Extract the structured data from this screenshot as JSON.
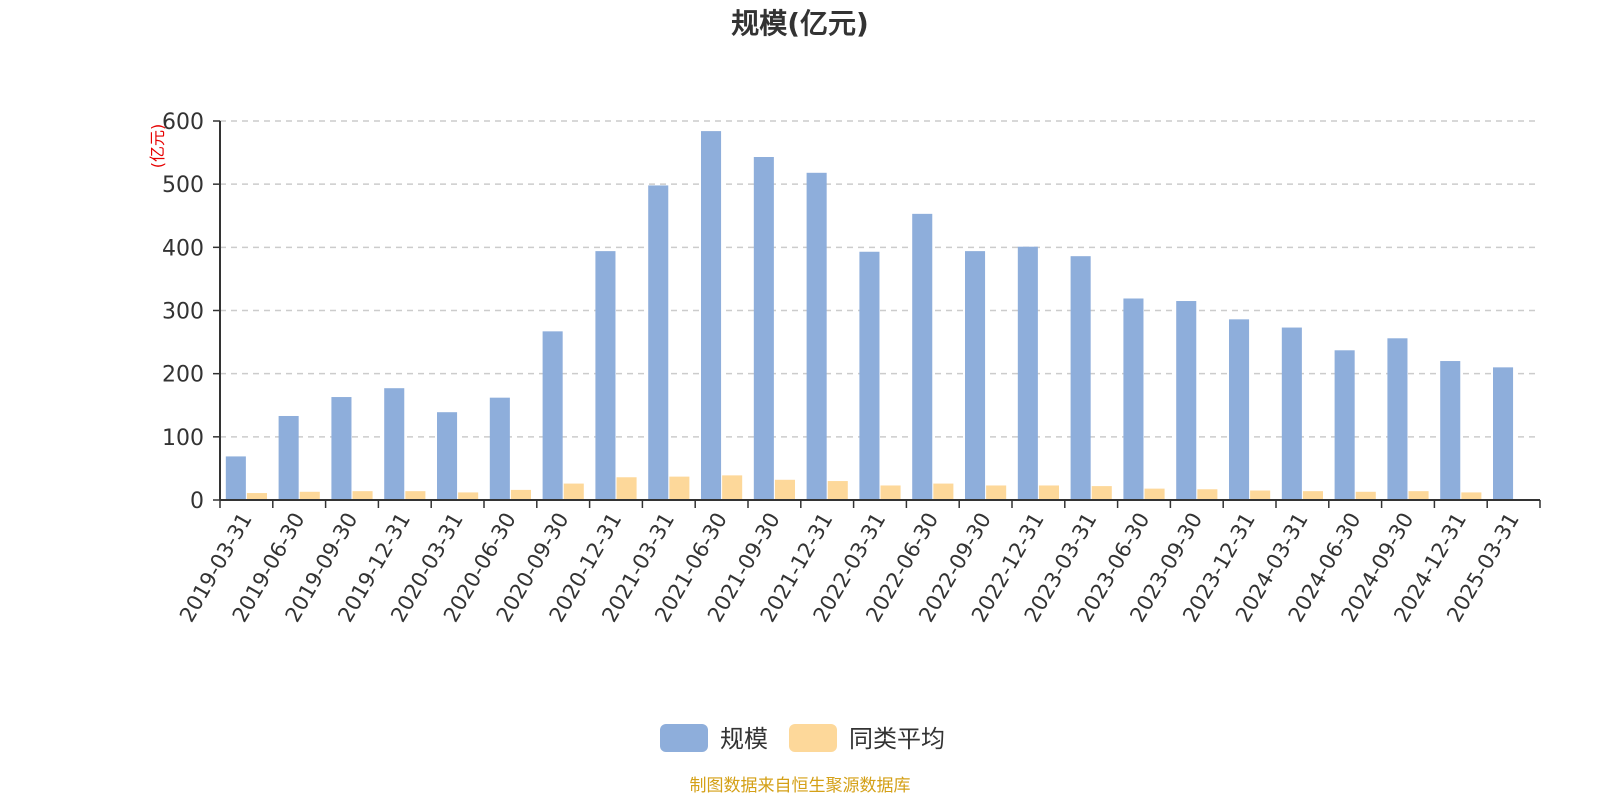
{
  "chart_data": {
    "type": "bar",
    "title": "规模(亿元)",
    "ylabel": "(亿元)",
    "ylim": [
      0,
      600
    ],
    "yticks": [
      0,
      100,
      200,
      300,
      400,
      500,
      600
    ],
    "grid": true,
    "legend_position": "bottom-center",
    "categories": [
      "2019-03-31",
      "2019-06-30",
      "2019-09-30",
      "2019-12-31",
      "2020-03-31",
      "2020-06-30",
      "2020-09-30",
      "2020-12-31",
      "2021-03-31",
      "2021-06-30",
      "2021-09-30",
      "2021-12-31",
      "2022-03-31",
      "2022-06-30",
      "2022-09-30",
      "2022-12-31",
      "2023-03-31",
      "2023-06-30",
      "2023-09-30",
      "2023-12-31",
      "2024-03-31",
      "2024-06-30",
      "2024-09-30",
      "2024-12-31",
      "2025-03-31"
    ],
    "series": [
      {
        "name": "规模",
        "color": "#8eaedb",
        "values": [
          69,
          133,
          163,
          177,
          139,
          162,
          267,
          394,
          498,
          584,
          543,
          518,
          393,
          453,
          394,
          401,
          386,
          319,
          315,
          286,
          273,
          237,
          256,
          220,
          210
        ]
      },
      {
        "name": "同类平均",
        "color": "#fdd89a",
        "values": [
          11,
          13,
          14,
          14,
          12,
          16,
          26,
          36,
          37,
          39,
          32,
          30,
          23,
          26,
          23,
          23,
          22,
          18,
          17,
          15,
          14,
          13,
          14,
          12,
          null
        ]
      }
    ],
    "source": "制图数据来自恒生聚源数据库"
  }
}
